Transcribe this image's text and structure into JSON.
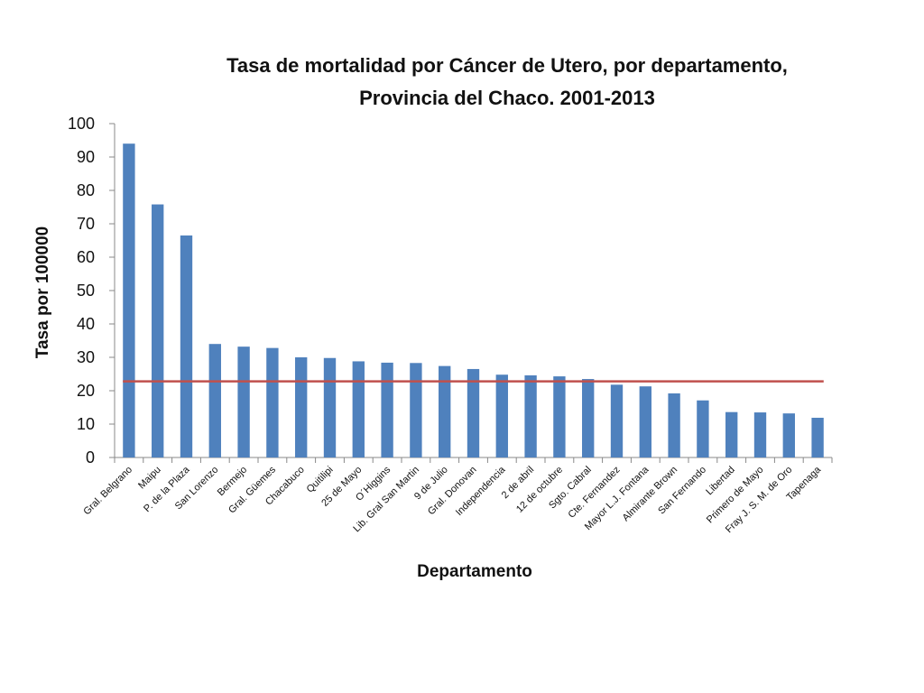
{
  "chart_data": {
    "type": "bar",
    "title": "Tasa de mortalidad por Cáncer de Utero,  por departamento, Provincia del Chaco. 2001-2013",
    "title_lines": [
      "Tasa de mortalidad por Cáncer de Utero,  por departamento,",
      "Provincia del Chaco. 2001-2013"
    ],
    "xlabel": "Departamento",
    "ylabel": "Tasa por 100000",
    "ylim": [
      0,
      100
    ],
    "yticks": [
      "0",
      "10",
      "20",
      "30",
      "40",
      "50",
      "60",
      "70",
      "80",
      "90",
      "100"
    ],
    "grid": false,
    "legend": "none",
    "categories": [
      "Gral. Belgrano",
      "Maipu",
      "P. de la Plaza",
      "San Lorenzo",
      "Bermejo",
      "Gral. Güemes",
      "Chacabuco",
      "Quitilipi",
      "25 de Mayo",
      "O´Higgins",
      "Lib. Gral San Martin",
      "9 de Julio",
      "Gral. Donovan",
      "Independencia",
      "2 de abril",
      "12 de octubre",
      "Sgto. Cabral",
      "Cte. Fernandez",
      "Mayor L.J. Fontana",
      "Almirante Brown",
      "San Fernando",
      "Libertad",
      "Primero de Mayo",
      "Fray J. S. M. de Oro",
      "Tapenaga"
    ],
    "values": [
      94,
      75.8,
      66.5,
      34,
      33.2,
      32.8,
      30,
      29.8,
      28.8,
      28.4,
      28.3,
      27.4,
      26.5,
      24.8,
      24.6,
      24.3,
      23.5,
      21.8,
      21.3,
      19.2,
      17.1,
      13.6,
      13.5,
      13.2,
      11.9
    ],
    "reference_line": {
      "value": 22.8
    },
    "colors": {
      "bar": "#4f81bd",
      "reference_line": "#c0504d",
      "axis": "#888888"
    }
  }
}
